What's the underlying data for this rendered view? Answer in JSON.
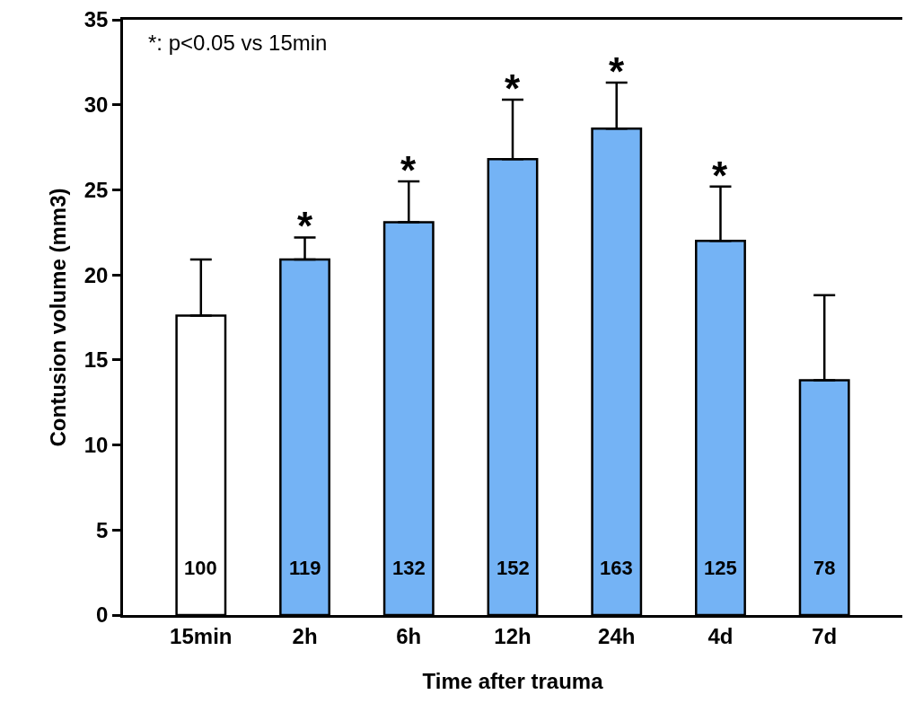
{
  "chart_data": {
    "type": "bar",
    "xlabel": "Time after trauma",
    "ylabel": "Contusion volume (mm3)",
    "categories": [
      "15min",
      "2h",
      "6h",
      "12h",
      "24h",
      "4d",
      "7d"
    ],
    "values": [
      17.6,
      20.9,
      23.1,
      26.8,
      28.6,
      22.0,
      13.8
    ],
    "colors": [
      "#ffffff",
      "#74b3f5",
      "#74b3f5",
      "#74b3f5",
      "#74b3f5",
      "#74b3f5",
      "#74b3f5"
    ],
    "errors": [
      [
        17.6,
        20.9
      ],
      [
        20.9,
        22.2
      ],
      [
        23.1,
        25.5
      ],
      [
        26.8,
        30.3
      ],
      [
        28.6,
        31.3
      ],
      [
        22.0,
        25.2
      ],
      [
        13.8,
        18.8
      ]
    ],
    "ylim": [
      0,
      35
    ],
    "yticks": [
      0,
      5,
      10,
      15,
      20,
      25,
      30,
      35
    ],
    "grid": false,
    "annotations": [
      "*: p<0.05 vs 15min",
      {
        "text": "*",
        "x": "2h",
        "y": 22.2
      },
      {
        "text": "*",
        "x": "6h",
        "y": 25.5
      },
      {
        "text": "*",
        "x": "12h",
        "y": 30.3
      },
      {
        "text": "*",
        "x": "24h",
        "y": 31.3
      },
      {
        "text": "*",
        "x": "4d",
        "y": 25.2
      },
      "100",
      "119",
      "132",
      "152",
      "163",
      "125",
      "78"
    ]
  }
}
